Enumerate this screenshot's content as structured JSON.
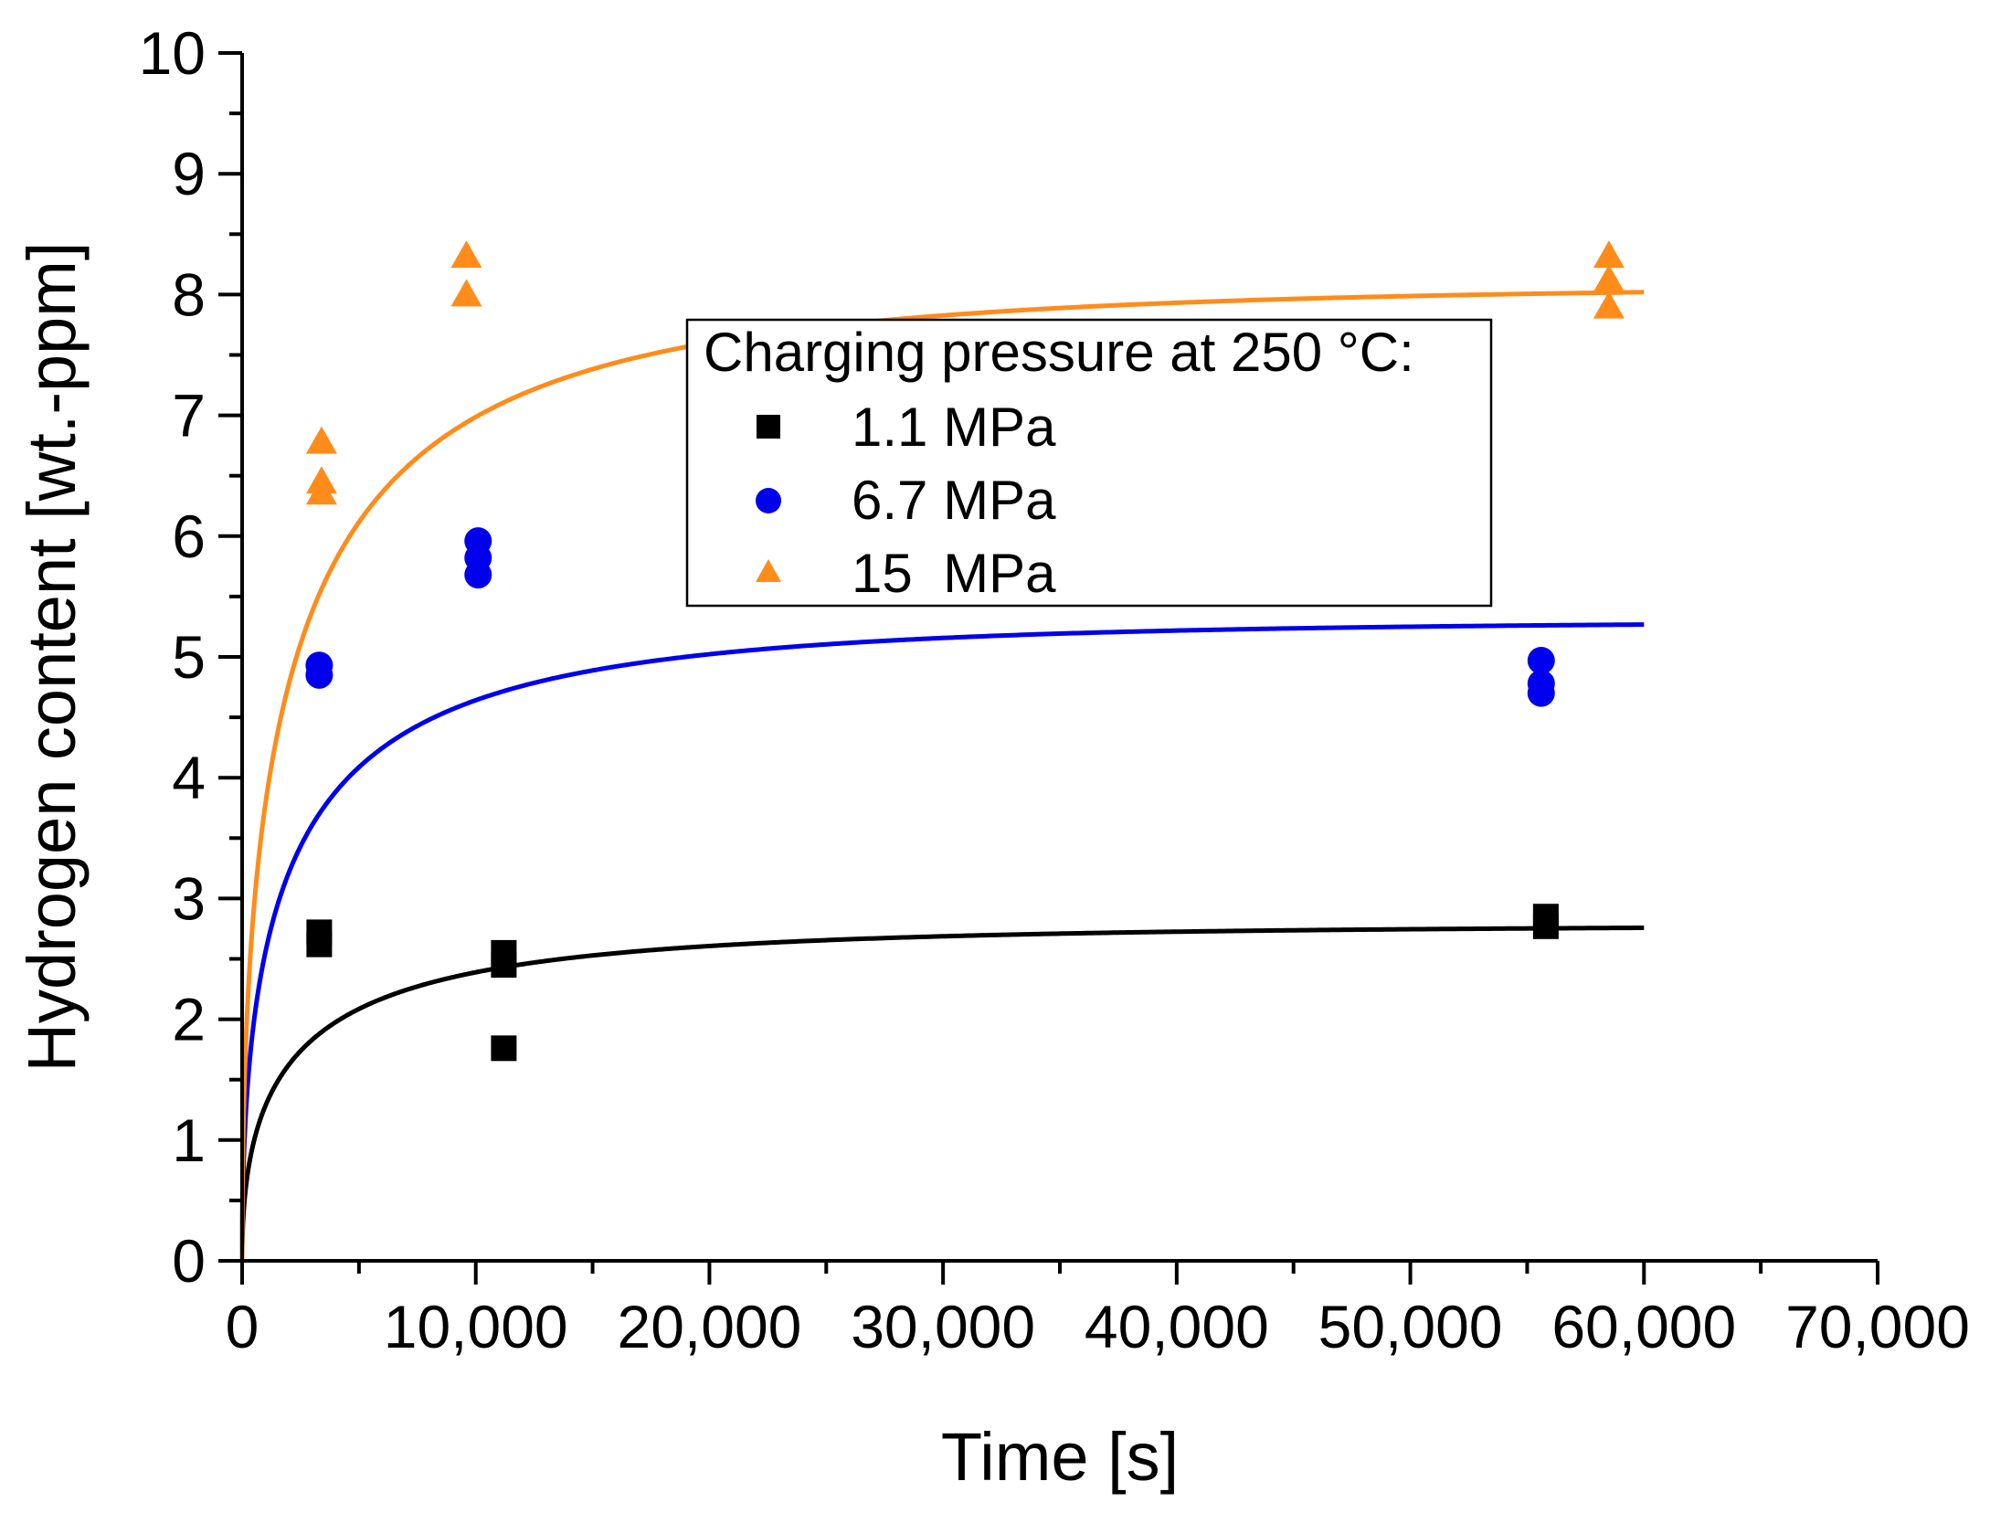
{
  "chart_data": {
    "type": "scatter",
    "xlabel": "Time [s]",
    "ylabel": "Hydrogen content [wt.-ppm]",
    "xlim": [
      0,
      70000
    ],
    "ylim": [
      0,
      10
    ],
    "x_ticks": [
      0,
      10000,
      20000,
      30000,
      40000,
      50000,
      60000,
      70000
    ],
    "x_tick_labels": [
      "0",
      "10,000",
      "20,000",
      "30,000",
      "40,000",
      "50,000",
      "60,000",
      "70,000"
    ],
    "y_ticks": [
      0,
      1,
      2,
      3,
      4,
      5,
      6,
      7,
      8,
      9,
      10
    ],
    "y_tick_labels": [
      "0",
      "1",
      "2",
      "3",
      "4",
      "5",
      "6",
      "7",
      "8",
      "9",
      "10"
    ],
    "legend": {
      "title": "Charging pressure at 250 °C:",
      "placement": "center-right-top"
    },
    "series": [
      {
        "name": "1.1 MPa",
        "marker": "square",
        "color": "#000000",
        "points": [
          [
            3300,
            2.62
          ],
          [
            3300,
            2.72
          ],
          [
            11200,
            2.45
          ],
          [
            11200,
            2.55
          ],
          [
            11200,
            1.76
          ],
          [
            55800,
            2.77
          ],
          [
            55800,
            2.85
          ]
        ],
        "fit": {
          "plateau": 2.78,
          "tau": 2600,
          "x_end": 60000
        }
      },
      {
        "name": "6.7 MPa",
        "marker": "circle",
        "color": "#0000ee",
        "points": [
          [
            3300,
            4.85
          ],
          [
            3300,
            4.93
          ],
          [
            10100,
            5.68
          ],
          [
            10100,
            5.82
          ],
          [
            10100,
            5.96
          ],
          [
            55600,
            4.7
          ],
          [
            55600,
            4.78
          ],
          [
            55600,
            4.97
          ]
        ],
        "fit": {
          "plateau": 5.3,
          "tau": 2300,
          "x_end": 60000
        }
      },
      {
        "name": "15  MPa",
        "marker": "triangle",
        "color": "#ff8c1a",
        "points": [
          [
            3400,
            6.36
          ],
          [
            3400,
            6.45
          ],
          [
            3400,
            6.78
          ],
          [
            9600,
            8.0
          ],
          [
            9600,
            8.32
          ],
          [
            58500,
            7.9
          ],
          [
            58500,
            8.12
          ],
          [
            58500,
            8.32
          ]
        ],
        "fit": {
          "plateau": 8.08,
          "tau": 2500,
          "x_end": 60000
        }
      }
    ]
  }
}
